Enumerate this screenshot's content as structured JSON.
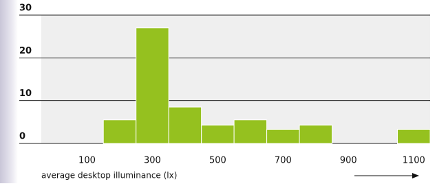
{
  "chart_data": {
    "type": "histogram",
    "bins": [
      150,
      250,
      350,
      450,
      550,
      650,
      750,
      850,
      950,
      1050,
      1150
    ],
    "values": [
      5.5,
      27,
      8.5,
      4.3,
      5.5,
      3.3,
      4.3,
      0,
      0,
      3.3
    ],
    "color": "#95c11f",
    "xlabel": "average desktop illuminance (lx)",
    "xlim": [
      -40,
      1150
    ],
    "xticks": [
      100,
      300,
      500,
      700,
      900,
      1100
    ],
    "ylim": [
      0,
      30
    ],
    "yticks": [
      0,
      10,
      20,
      30
    ],
    "grid": true
  }
}
